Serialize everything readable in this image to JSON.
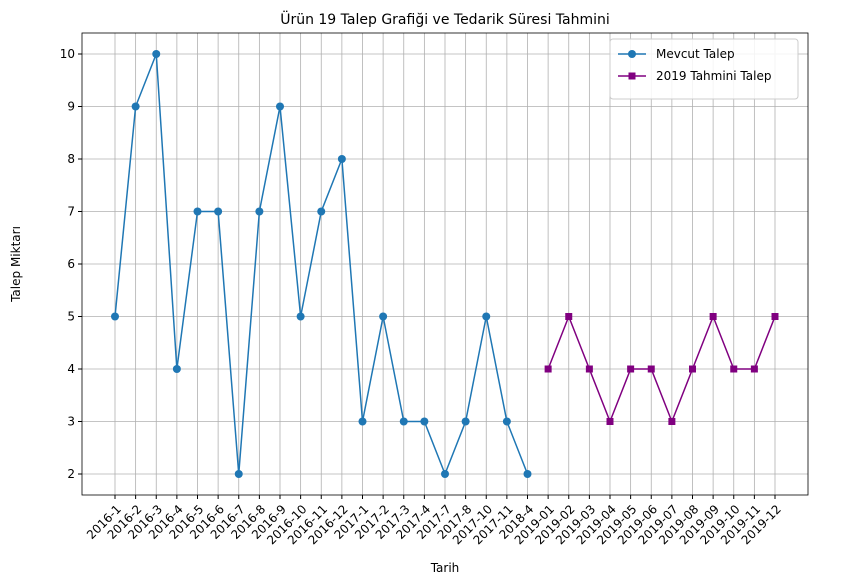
{
  "chart_data": {
    "type": "line",
    "title": "Ürün 19 Talep Grafiği ve Tedarik Süresi Tahmini",
    "x_label": "Tarih",
    "y_label": "Talep Miktarı",
    "categories": [
      "2016-1",
      "2016-2",
      "2016-3",
      "2016-4",
      "2016-5",
      "2016-6",
      "2016-7",
      "2016-8",
      "2016-9",
      "2016-10",
      "2016-11",
      "2016-12",
      "2017-1",
      "2017-2",
      "2017-3",
      "2017-4",
      "2017-7",
      "2017-8",
      "2017-10",
      "2017-11",
      "2018-4",
      "2019-01",
      "2019-02",
      "2019-03",
      "2019-04",
      "2019-05",
      "2019-06",
      "2019-07",
      "2019-08",
      "2019-09",
      "2019-10",
      "2019-11",
      "2019-12"
    ],
    "series": [
      {
        "name": "Mevcut Talep",
        "color": "#1f77b4",
        "marker": "circle",
        "values": [
          5,
          9,
          10,
          4,
          7,
          7,
          2,
          7,
          9,
          5,
          7,
          8,
          3,
          5,
          3,
          3,
          2,
          3,
          5,
          3,
          2,
          null,
          null,
          null,
          null,
          null,
          null,
          null,
          null,
          null,
          null,
          null,
          null
        ]
      },
      {
        "name": "2019 Tahmini Talep",
        "color": "#800080",
        "marker": "square",
        "values": [
          null,
          null,
          null,
          null,
          null,
          null,
          null,
          null,
          null,
          null,
          null,
          null,
          null,
          null,
          null,
          null,
          null,
          null,
          null,
          null,
          null,
          4,
          5,
          4,
          3,
          4,
          4,
          3,
          4,
          5,
          4,
          4,
          5
        ]
      }
    ],
    "ylim": [
      1.6,
      10.4
    ],
    "yticks": [
      2,
      3,
      4,
      5,
      6,
      7,
      8,
      9,
      10
    ],
    "grid": true,
    "legend": "upper right"
  }
}
